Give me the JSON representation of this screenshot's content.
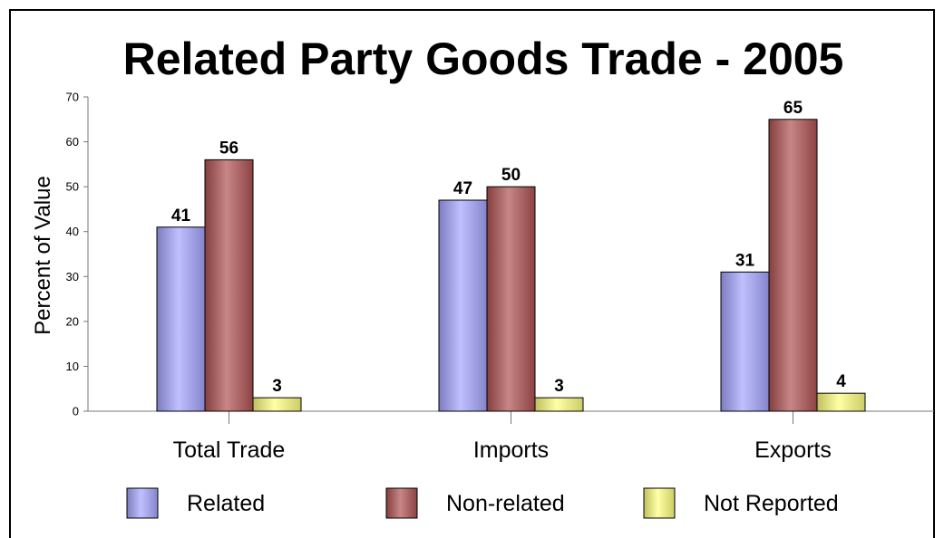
{
  "chart_data": {
    "type": "bar",
    "title": "Related Party Goods Trade - 2005",
    "ylabel": "Percent of Value",
    "xlabel": "",
    "ylim": [
      0,
      70
    ],
    "yticks": [
      0,
      10,
      20,
      30,
      40,
      50,
      60,
      70
    ],
    "categories": [
      "Total Trade",
      "Imports",
      "Exports"
    ],
    "series": [
      {
        "name": "Related",
        "values": [
          41,
          47,
          31
        ],
        "color": "#a5a5ff"
      },
      {
        "name": "Non-related",
        "values": [
          56,
          50,
          65
        ],
        "color": "#b05252"
      },
      {
        "name": "Not Reported",
        "values": [
          3,
          3,
          4
        ],
        "color": "#ffff80"
      }
    ],
    "data_labels": true,
    "grid": false,
    "legend_position": "bottom"
  }
}
